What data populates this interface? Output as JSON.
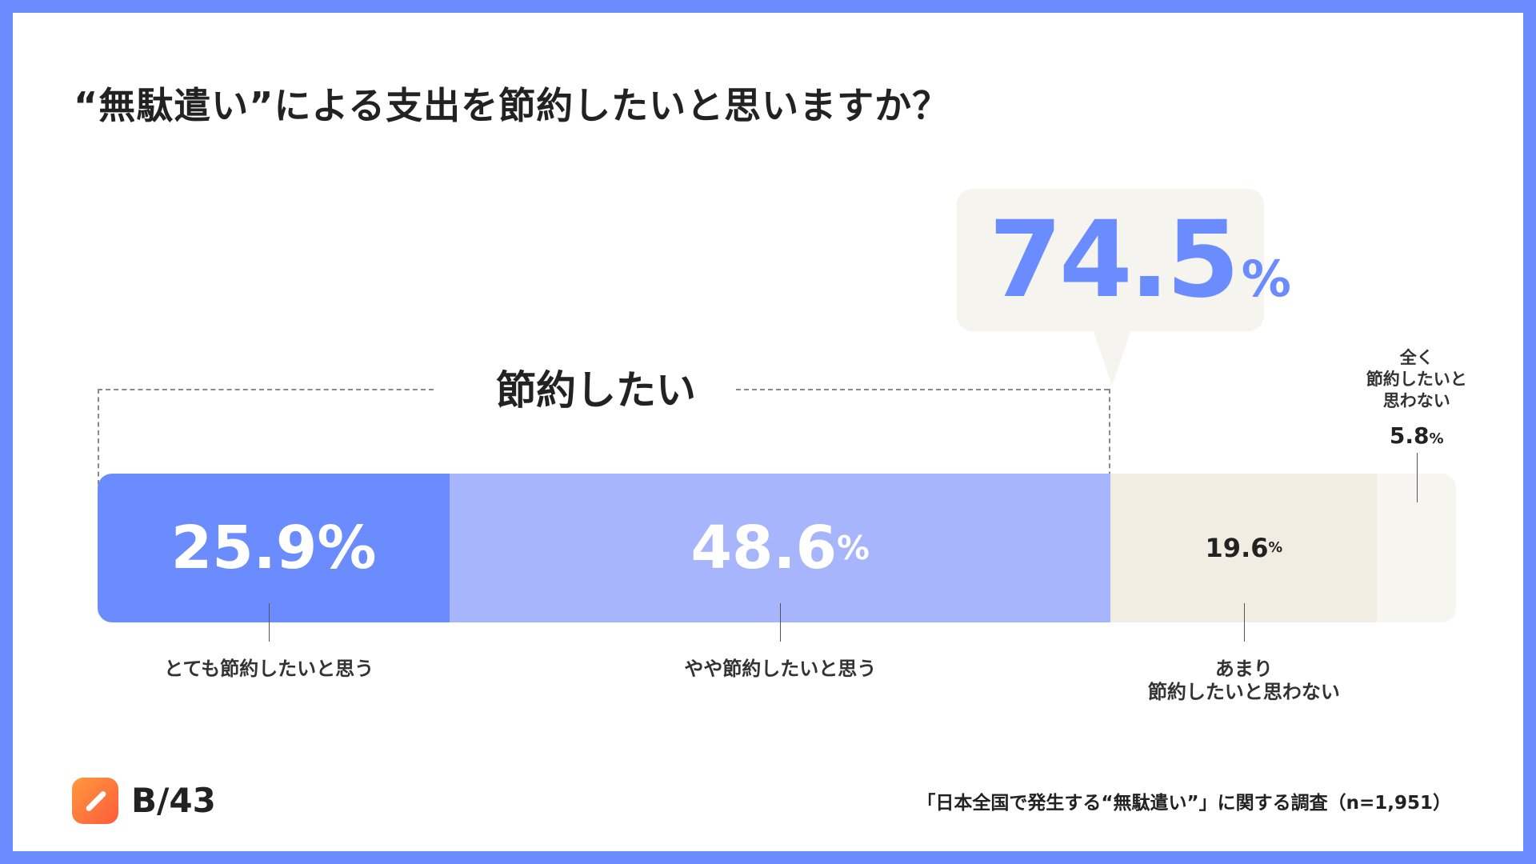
{
  "title": "“無駄遣い”による支出を節約したいと思いますか？",
  "callout": {
    "value": "74.5",
    "unit": "%"
  },
  "bracket_label": "節約したい",
  "chart_data": {
    "type": "bar",
    "orientation": "horizontal-stacked-100",
    "title": "“無駄遣い”による支出を節約したいと思いますか？",
    "categories": [
      "とても節約したいと思う",
      "やや節約したいと思う",
      "あまり節約したいと思わない",
      "全く節約したいと思わない"
    ],
    "values": [
      25.9,
      48.6,
      19.6,
      5.8
    ],
    "value_labels": [
      "25.9",
      "48.6",
      "19.6",
      "5.8"
    ],
    "unit": "%",
    "colors": [
      "#6a8cff",
      "#a7b6fc",
      "#f2ede2",
      "#f7f5f0"
    ],
    "label_colors": [
      "#ffffff",
      "#ffffff",
      "#222222",
      "#222222"
    ],
    "label_lines": [
      [
        "とても節約したいと思う"
      ],
      [
        "やや節約したいと思う"
      ],
      [
        "あまり",
        "節約したいと思わない"
      ],
      [
        "全く",
        "節約したいと",
        "思わない"
      ]
    ],
    "grouped": {
      "label": "節約したい",
      "value": 74.5
    }
  },
  "logo": {
    "text": "B/43",
    "icon": "pencil-slash-icon"
  },
  "footer_note": "「日本全国で発生する“無駄遣い”」に関する調査（n=1,951）"
}
